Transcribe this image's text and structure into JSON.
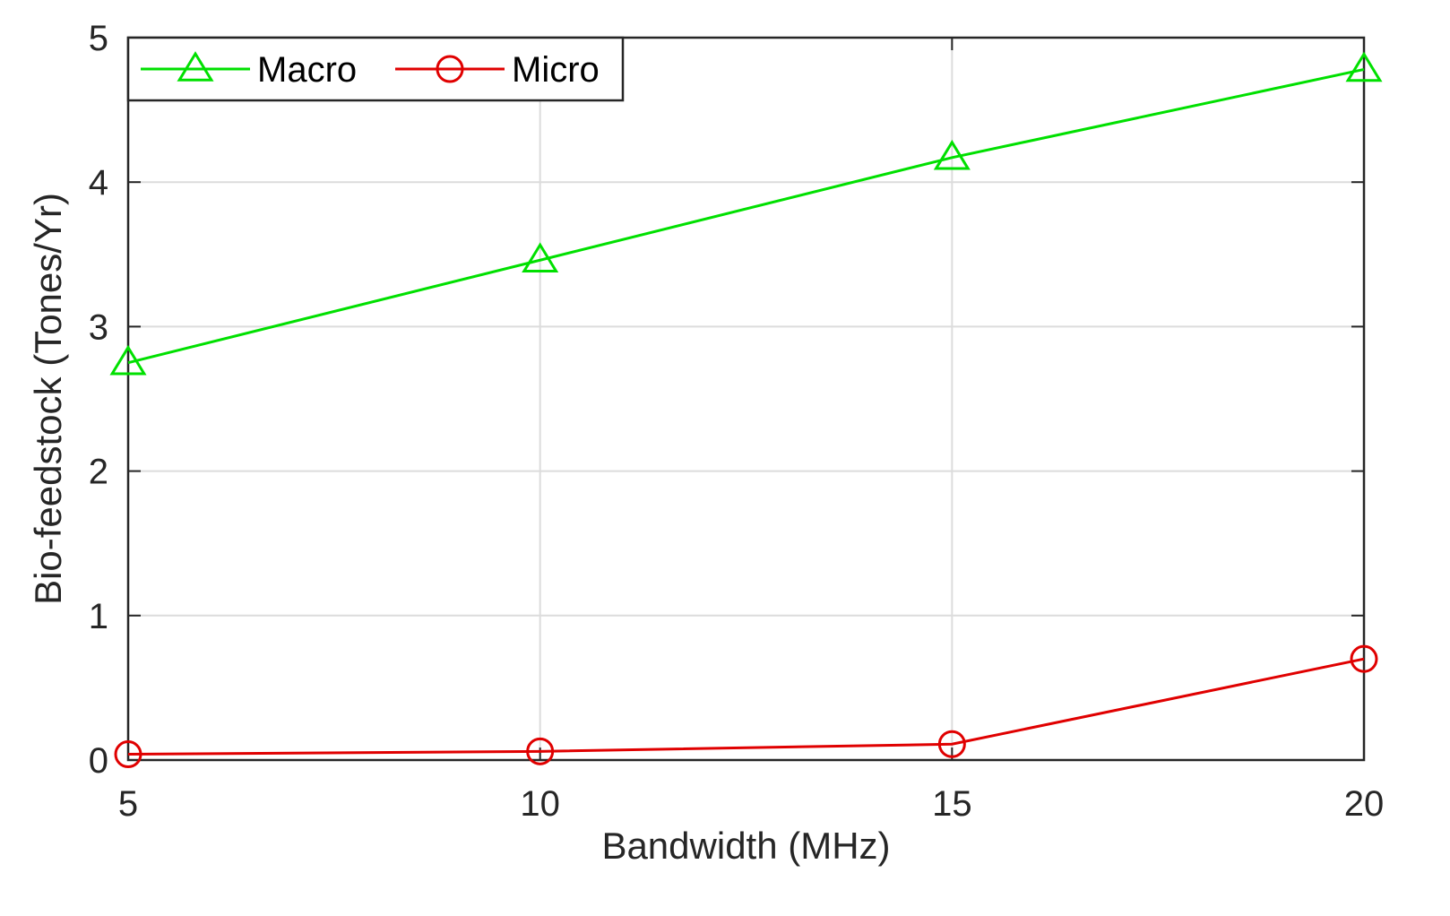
{
  "chart_data": {
    "type": "line",
    "title": "",
    "xlabel": "Bandwidth (MHz)",
    "ylabel": "Bio-feedstock (Tones/Yr)",
    "x": [
      5,
      10,
      15,
      20
    ],
    "xlim": [
      5,
      20
    ],
    "ylim": [
      0,
      5
    ],
    "xticks": [
      5,
      10,
      15,
      20
    ],
    "yticks": [
      0,
      1,
      2,
      3,
      4,
      5
    ],
    "grid": true,
    "legend_position": "top-left",
    "series": [
      {
        "name": "Macro",
        "values": [
          2.75,
          3.46,
          4.17,
          4.78
        ],
        "color": "#00e000",
        "marker": "triangle"
      },
      {
        "name": "Micro",
        "values": [
          0.04,
          0.06,
          0.11,
          0.7
        ],
        "color": "#e00000",
        "marker": "circle"
      }
    ]
  }
}
